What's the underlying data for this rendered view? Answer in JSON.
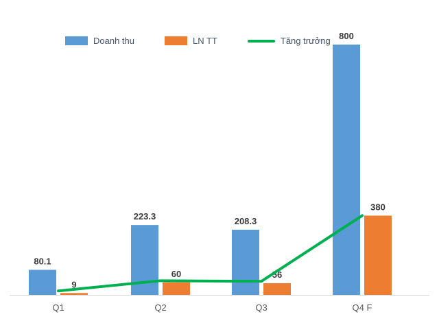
{
  "chart_data": {
    "type": "combo_bar_line",
    "title": "",
    "categories": [
      "Q1",
      "Q2",
      "Q3",
      "Q4 F"
    ],
    "series": [
      {
        "name": "Doanh thu",
        "type": "bar",
        "axis": "primary",
        "color": "#5B9BD5",
        "values": [
          80.1,
          223.3,
          208.3,
          800
        ],
        "data_labels": [
          "80.1",
          "223.3",
          "208.3",
          "800"
        ]
      },
      {
        "name": "LN TT",
        "type": "bar",
        "axis": "secondary",
        "color": "#ED7D31",
        "values": [
          9,
          60,
          56,
          380
        ],
        "data_labels": [
          "9",
          "60",
          "56",
          "380"
        ]
      },
      {
        "name": "Tăng trưởng",
        "type": "line",
        "axis": "secondary",
        "color": "#00B050",
        "values": [
          19,
          68,
          65,
          380
        ],
        "values_note": "line values estimated from pixel positions; no secondary axis labels visible"
      }
    ],
    "ylim_primary": [
      0,
      800
    ],
    "ylim_secondary": [
      0,
      1200
    ],
    "grid": false,
    "y_axis_visible": false,
    "legend_position": "top"
  },
  "colors": {
    "axis_line": "#D9D9D9",
    "bar_label_text": "#3a3a3a",
    "category_label_text": "#595959",
    "legend_text": "#44546A",
    "background": "#FFFFFF"
  }
}
